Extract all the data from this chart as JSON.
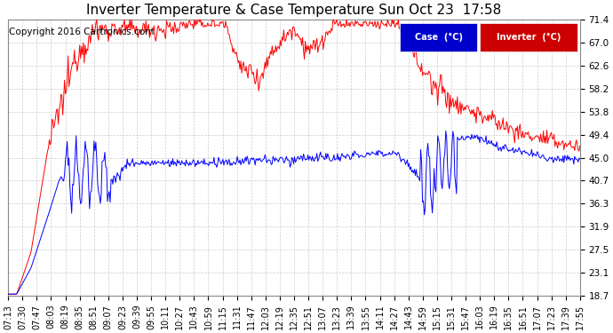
{
  "title": "Inverter Temperature & Case Temperature Sun Oct 23  17:58",
  "copyright": "Copyright 2016 Cartronics.com",
  "background_color": "#ffffff",
  "plot_bg_color": "#ffffff",
  "grid_color": "#cccccc",
  "y_ticks": [
    18.7,
    23.1,
    27.5,
    31.9,
    36.3,
    40.7,
    45.0,
    49.4,
    53.8,
    58.2,
    62.6,
    67.0,
    71.4
  ],
  "y_min": 18.7,
  "y_max": 71.4,
  "case_color": "#0000ff",
  "inverter_color": "#ff0000",
  "legend_case_bg": "#0000cc",
  "legend_inv_bg": "#cc0000",
  "legend_text_color": "#ffffff",
  "title_fontsize": 11,
  "axis_fontsize": 7.5,
  "copyright_fontsize": 7.5,
  "x_tick_labels": [
    "07:13",
    "07:30",
    "07:47",
    "08:03",
    "08:19",
    "08:35",
    "08:51",
    "09:07",
    "09:23",
    "09:39",
    "09:55",
    "10:11",
    "10:27",
    "10:43",
    "10:59",
    "11:15",
    "11:31",
    "11:47",
    "12:03",
    "12:19",
    "12:35",
    "12:51",
    "13:07",
    "13:23",
    "13:39",
    "13:55",
    "14:11",
    "14:27",
    "14:43",
    "14:59",
    "15:15",
    "15:31",
    "15:47",
    "16:03",
    "16:19",
    "16:35",
    "16:51",
    "17:07",
    "17:23",
    "17:39",
    "17:55"
  ]
}
